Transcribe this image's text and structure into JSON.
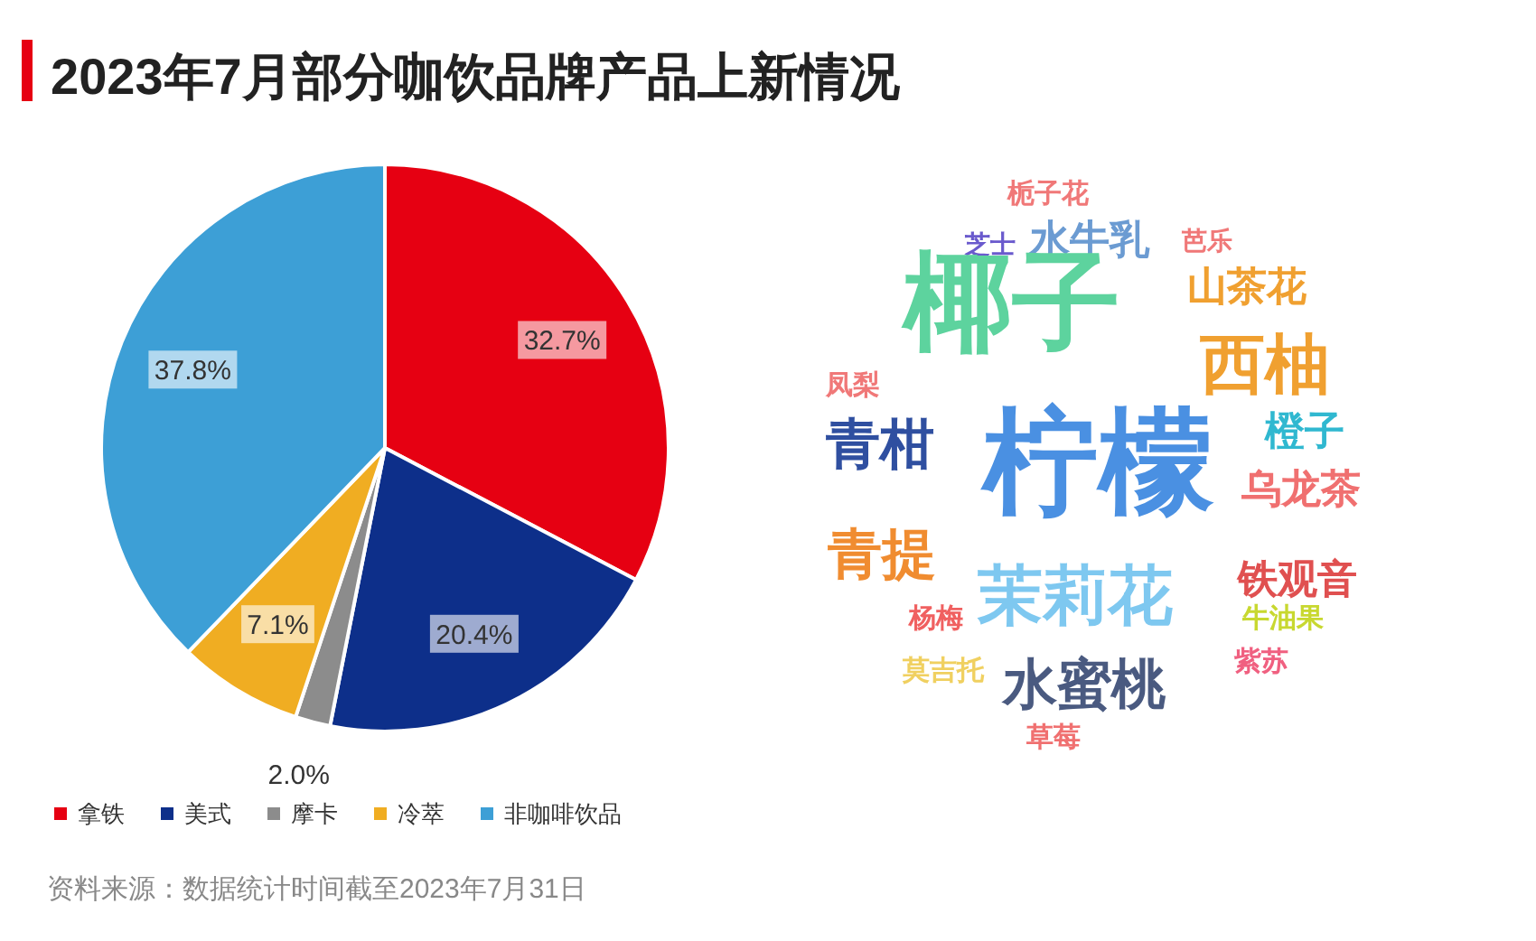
{
  "chart_data": [
    {
      "type": "pie",
      "title": "2023年7月部分咖饮品牌产品上新情况",
      "categories": [
        "拿铁",
        "美式",
        "摩卡",
        "冷萃",
        "非咖啡饮品"
      ],
      "values": [
        32.7,
        20.4,
        2.0,
        7.1,
        37.8
      ],
      "colors": [
        "#e60012",
        "#0d2f8a",
        "#8c8c8c",
        "#f0ad22",
        "#3d9fd6"
      ],
      "value_labels": [
        "32.7%",
        "20.4%",
        "2.0%",
        "7.1%",
        "37.8%"
      ],
      "legend": "bottom",
      "annotations": [
        "资料来源：数据统计时间截至2023年7月31日"
      ]
    },
    {
      "type": "other",
      "categories": [
        "栀子花",
        "芝士",
        "水牛乳",
        "芭乐",
        "椰子",
        "山茶花",
        "西柚",
        "凤梨",
        "青柑",
        "柠檬",
        "橙子",
        "乌龙茶",
        "青提",
        "茉莉花",
        "铁观音",
        "杨梅",
        "牛油果",
        "莫吉托",
        "水蜜桃",
        "紫苏",
        "草莓"
      ],
      "colors": [
        "#f07878",
        "#6a5acd",
        "#6b9bd2",
        "#f07878",
        "#5dd39e",
        "#f0a030",
        "#f0a030",
        "#f07878",
        "#2f4fa0",
        "#4a90e2",
        "#30b8d0",
        "#f07070",
        "#f08c30",
        "#7ec8f0",
        "#e05050",
        "#f06060",
        "#c8d830",
        "#f0d060",
        "#4a5a80",
        "#f06080",
        "#f07070"
      ]
    }
  ]
}
